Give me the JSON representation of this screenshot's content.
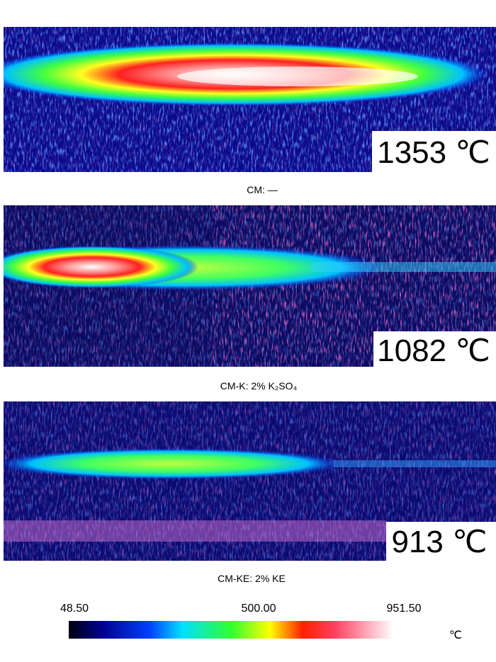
{
  "panels": [
    {
      "temperature": "1353 ℃",
      "caption": "CM: —"
    },
    {
      "temperature": "1082 ℃",
      "caption": "CM-K: 2% K₂SO₄"
    },
    {
      "temperature": "913 ℃",
      "caption": "CM-KE: 2% KE"
    }
  ],
  "colorbar": {
    "labels": [
      "48.50",
      "500.00",
      "951.50"
    ],
    "unit": "℃"
  }
}
